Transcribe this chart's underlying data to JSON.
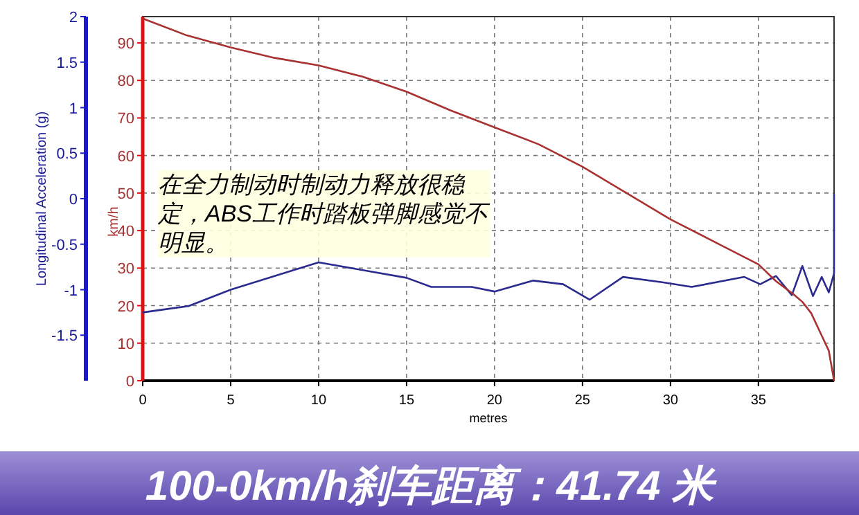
{
  "chart_data": {
    "type": "line",
    "title": "100-0km/h刹车距离：41.74 米",
    "xlabel": "metres",
    "ylabel": "Longitudinal Acceleration (g)",
    "y2label": "km/h",
    "annotations": [
      "在全力制动时制动力释放很稳定，ABS工作时踏板弹脚感觉不明显。"
    ],
    "xlim": [
      0,
      39.3
    ],
    "xticks": [
      0,
      5,
      10,
      15,
      20,
      25,
      30,
      35
    ],
    "ylim": [
      -2,
      2
    ],
    "yticks": [
      -1.5,
      -1,
      -0.5,
      0,
      0.5,
      1,
      1.5,
      2
    ],
    "y2lim": [
      0,
      97
    ],
    "y2ticks": [
      0,
      10,
      20,
      30,
      40,
      50,
      60,
      70,
      80,
      90
    ],
    "grid": true,
    "marker": "none",
    "line_style": "solid",
    "series": [
      {
        "color": "#2b2b8f",
        "x": [
          0,
          2.6,
          5,
          10,
          15,
          16.4,
          18.7,
          20,
          22.2,
          23.9,
          25.4,
          27.3,
          29.6,
          31.2,
          34.2,
          35.1,
          36,
          36.9,
          37.5,
          38.1,
          38.6,
          39,
          39.3,
          39.3
        ],
        "values": [
          -1.25,
          -1.18,
          -1.0,
          -0.7,
          -0.87,
          -0.97,
          -0.97,
          -1.02,
          -0.9,
          -0.94,
          -1.11,
          -0.86,
          -0.92,
          -0.97,
          -0.86,
          -0.94,
          -0.85,
          -1.06,
          -0.74,
          -1.07,
          -0.86,
          -1.03,
          -0.82,
          0.05
        ]
      },
      {
        "color": "#a83232",
        "axis": "y2",
        "x": [
          0,
          2.5,
          5,
          7.5,
          10,
          12.5,
          15,
          17.5,
          20,
          22.5,
          25,
          27.5,
          30,
          32.5,
          35,
          36,
          37,
          37.5,
          38,
          38.5,
          39,
          39.3
        ],
        "values": [
          96.5,
          92,
          88.8,
          86,
          84,
          81,
          77,
          72,
          67.5,
          63,
          57,
          50,
          43,
          37,
          31,
          26.5,
          23,
          21,
          18,
          13,
          8,
          0
        ]
      }
    ]
  }
}
